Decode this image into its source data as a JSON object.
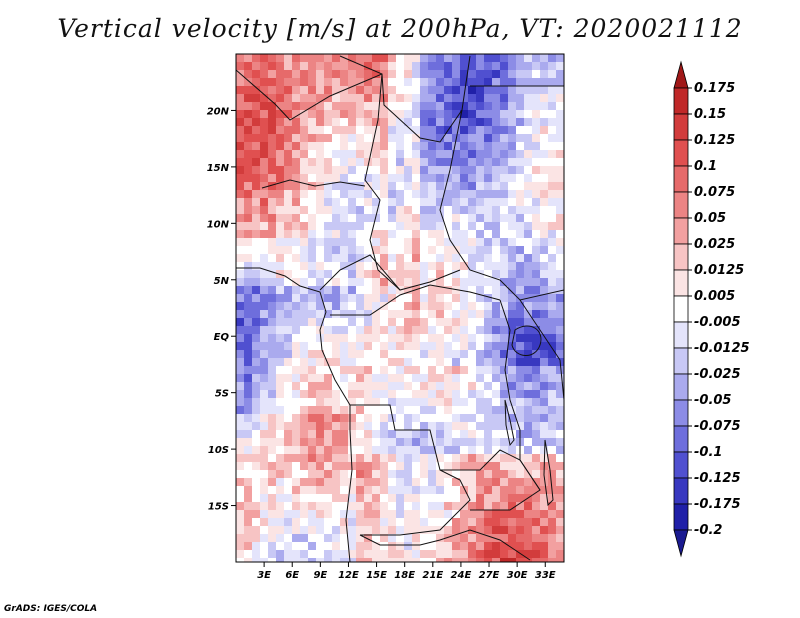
{
  "title": "Vertical velocity [m/s] at 200hPa, VT: 2020021112",
  "credit": "GrADS: IGES/COLA",
  "map": {
    "lon_range": [
      0,
      35
    ],
    "lat_range": [
      -20,
      25
    ],
    "lat_ticks": [
      {
        "value": 20,
        "label": "20N"
      },
      {
        "value": 15,
        "label": "15N"
      },
      {
        "value": 10,
        "label": "10N"
      },
      {
        "value": 5,
        "label": "5N"
      },
      {
        "value": 0,
        "label": "EQ"
      },
      {
        "value": -5,
        "label": "5S"
      },
      {
        "value": -10,
        "label": "10S"
      },
      {
        "value": -15,
        "label": "15S"
      }
    ],
    "lon_ticks": [
      {
        "value": 3,
        "label": "3E"
      },
      {
        "value": 6,
        "label": "6E"
      },
      {
        "value": 9,
        "label": "9E"
      },
      {
        "value": 12,
        "label": "12E"
      },
      {
        "value": 15,
        "label": "15E"
      },
      {
        "value": 18,
        "label": "18E"
      },
      {
        "value": 21,
        "label": "21E"
      },
      {
        "value": 24,
        "label": "24E"
      },
      {
        "value": 27,
        "label": "27E"
      },
      {
        "value": 30,
        "label": "30E"
      },
      {
        "value": 33,
        "label": "33E"
      }
    ]
  },
  "colorbar": {
    "levels": [
      "0.175",
      "0.15",
      "0.125",
      "0.1",
      "0.075",
      "0.05",
      "0.025",
      "0.0125",
      "0.005",
      "-0.005",
      "-0.0125",
      "-0.025",
      "-0.05",
      "-0.075",
      "-0.1",
      "-0.125",
      "-0.175",
      "-0.2"
    ],
    "colors": [
      "#a01818",
      "#c02828",
      "#d23c3c",
      "#e05050",
      "#e66a6a",
      "#ec8484",
      "#f2a0a0",
      "#f7c4c4",
      "#fbe4e4",
      "#ffffff",
      "#e4e4fb",
      "#c8c8f5",
      "#aaaaee",
      "#8c8ce6",
      "#6e6edc",
      "#5050d0",
      "#3838c0",
      "#2020a8",
      "#1a1a90"
    ]
  }
}
